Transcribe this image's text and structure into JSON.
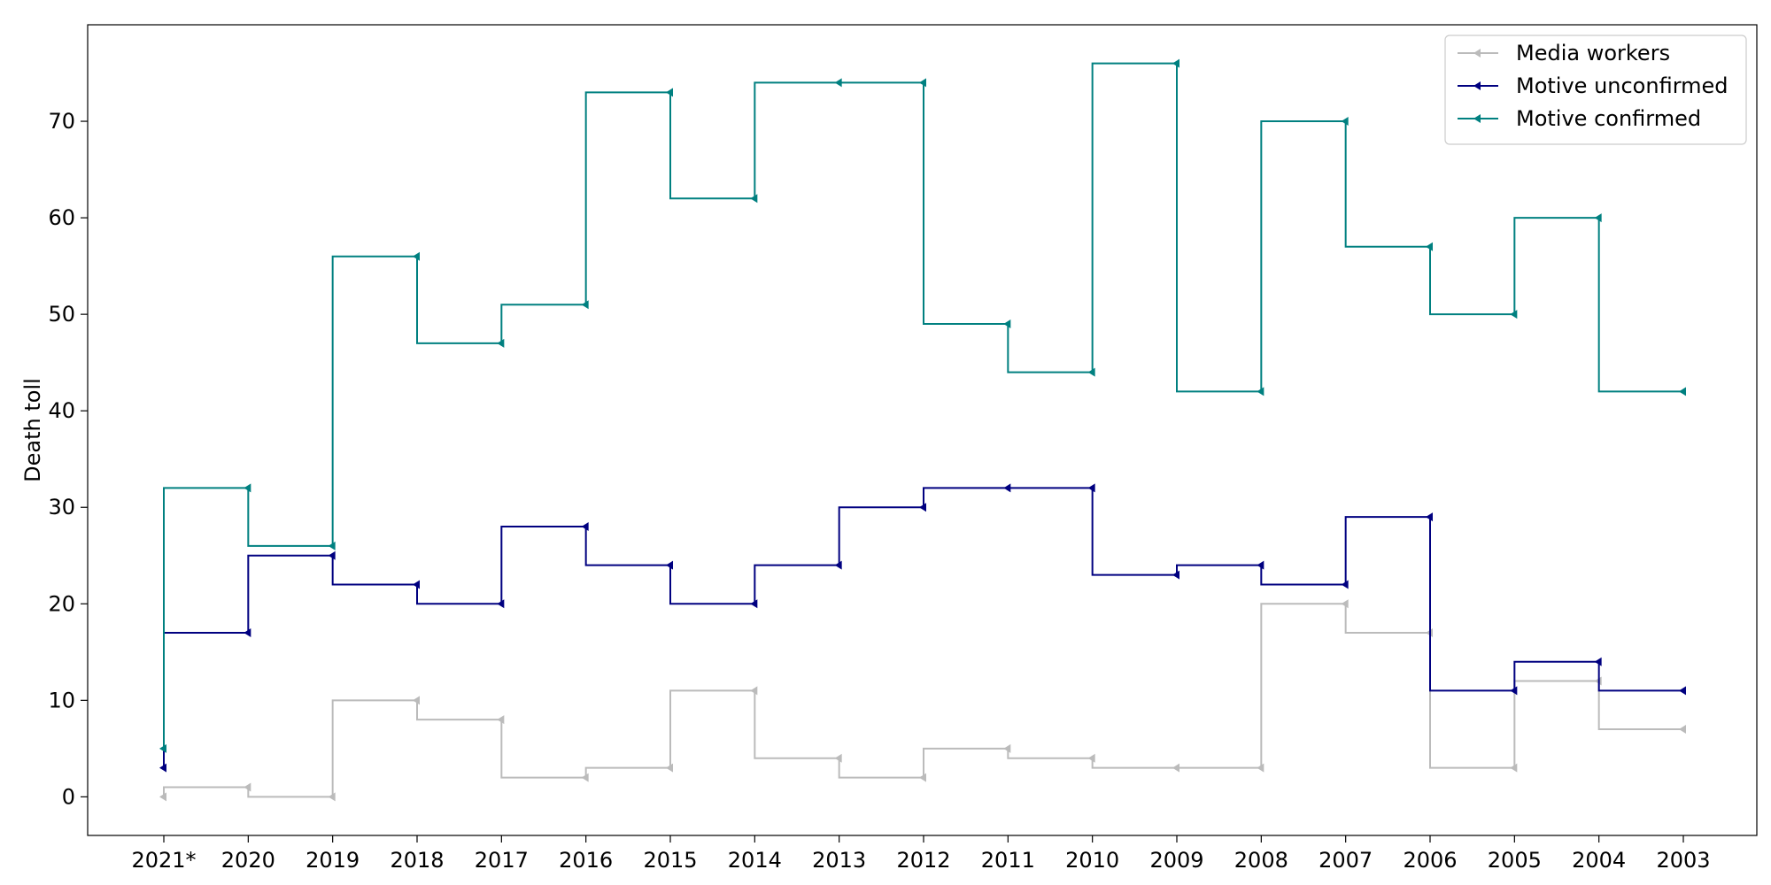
{
  "chart_data": {
    "type": "line",
    "drawstyle": "steps",
    "categories": [
      "2021*",
      "2020",
      "2019",
      "2018",
      "2017",
      "2016",
      "2015",
      "2014",
      "2013",
      "2012",
      "2011",
      "2010",
      "2009",
      "2008",
      "2007",
      "2006",
      "2005",
      "2004",
      "2003"
    ],
    "ylabel": "Death toll",
    "ylim": [
      -4,
      80
    ],
    "yticks": [
      0,
      10,
      20,
      30,
      40,
      50,
      60,
      70
    ],
    "grid": false,
    "legend_position": "top-right",
    "marker": "left-triangle",
    "series": [
      {
        "name": "Media workers",
        "color": "#bbbbbb",
        "values": [
          0,
          1,
          0,
          10,
          8,
          2,
          3,
          11,
          4,
          2,
          5,
          4,
          3,
          3,
          20,
          17,
          3,
          12,
          7
        ]
      },
      {
        "name": "Motive unconfirmed",
        "color": "#000080",
        "values": [
          3,
          17,
          25,
          22,
          20,
          28,
          24,
          20,
          24,
          30,
          32,
          32,
          23,
          24,
          22,
          29,
          11,
          14,
          11
        ]
      },
      {
        "name": "Motive confirmed",
        "color": "#008080",
        "values": [
          5,
          32,
          26,
          56,
          47,
          51,
          73,
          62,
          74,
          74,
          49,
          44,
          76,
          42,
          70,
          57,
          50,
          60,
          42
        ]
      }
    ]
  }
}
